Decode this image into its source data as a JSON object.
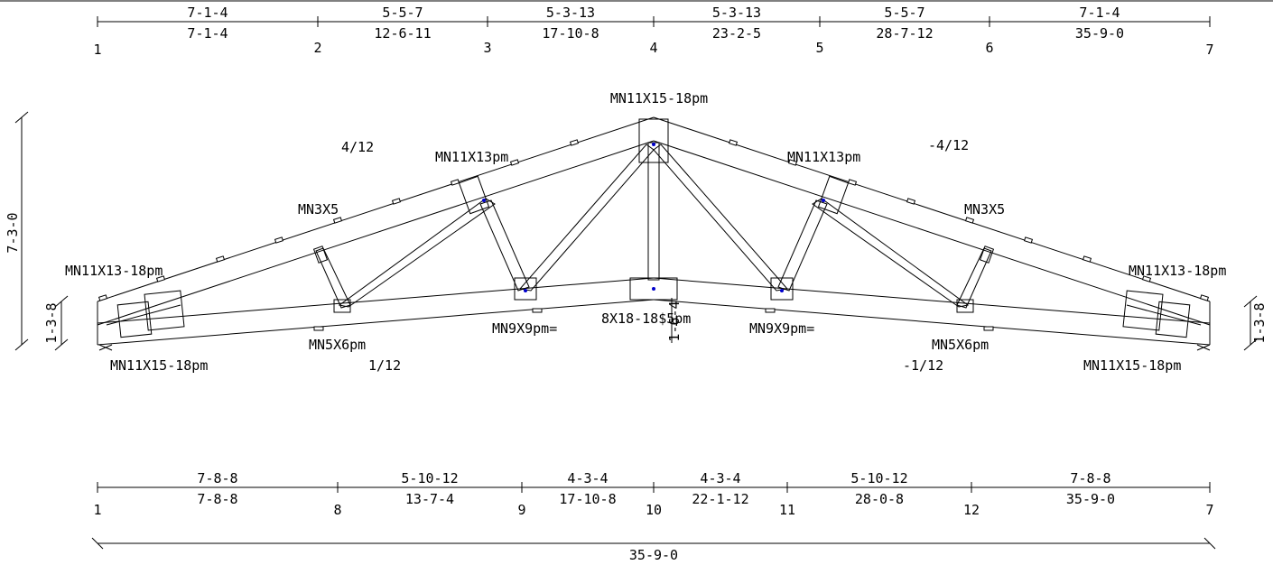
{
  "top_dimensions": {
    "segments": [
      "7-1-4",
      "5-5-7",
      "5-3-13",
      "5-3-13",
      "5-5-7",
      "7-1-4"
    ],
    "cumulative": [
      "7-1-4",
      "12-6-11",
      "17-10-8",
      "23-2-5",
      "28-7-12",
      "35-9-0"
    ],
    "joint_numbers": [
      "1",
      "2",
      "3",
      "4",
      "5",
      "6",
      "7"
    ]
  },
  "bottom_dimensions": {
    "segments": [
      "7-8-8",
      "5-10-12",
      "4-3-4",
      "4-3-4",
      "5-10-12",
      "7-8-8"
    ],
    "cumulative": [
      "7-8-8",
      "13-7-4",
      "17-10-8",
      "22-1-12",
      "28-0-8",
      "35-9-0"
    ],
    "joint_numbers": [
      "1",
      "8",
      "9",
      "10",
      "11",
      "12",
      "7"
    ]
  },
  "overall_span": "35-9-0",
  "left_height": "7-3-0",
  "left_heel_height": "1-3-8",
  "right_heel_height": "1-3-8",
  "center_height": "1-6-4",
  "pitches": {
    "top_left": "4/12",
    "top_right": "-4/12",
    "bottom_left": "1/12",
    "bottom_right": "-1/12"
  },
  "plates": {
    "peak": "MN11X15-18pm",
    "top_left_panel": "MN11X13pm",
    "top_right_panel": "MN11X13pm",
    "left_web_top": "MN3X5",
    "right_web_top": "MN3X5",
    "left_heel_upper": "MN11X13-18pm",
    "right_heel_upper": "MN11X13-18pm",
    "left_heel_lower": "MN11X15-18pm",
    "right_heel_lower": "MN11X15-18pm",
    "left_bottom_web": "MN5X6pm",
    "right_bottom_web": "MN5X6pm",
    "left_bottom_mid": "MN9X9pm=",
    "right_bottom_mid": "MN9X9pm=",
    "center_bottom": "8X18-18$5pm"
  }
}
